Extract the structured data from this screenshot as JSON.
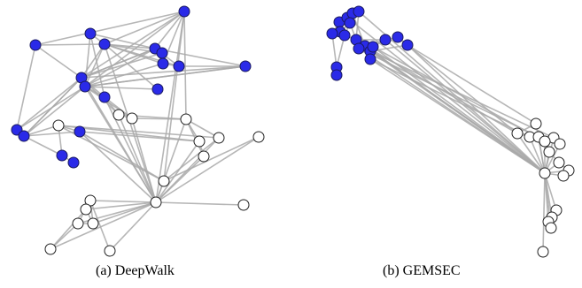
{
  "panels": [
    {
      "id": "deepwalk",
      "caption": "(a) DeepWalk",
      "legend_colors": {
        "community_a": "#2a2ae8",
        "community_b": "#ffffff"
      }
    },
    {
      "id": "gemsec",
      "caption": "(b) GEMSEC",
      "legend_colors": {
        "community_a": "#2a2ae8",
        "community_b": "#ffffff"
      }
    }
  ]
}
